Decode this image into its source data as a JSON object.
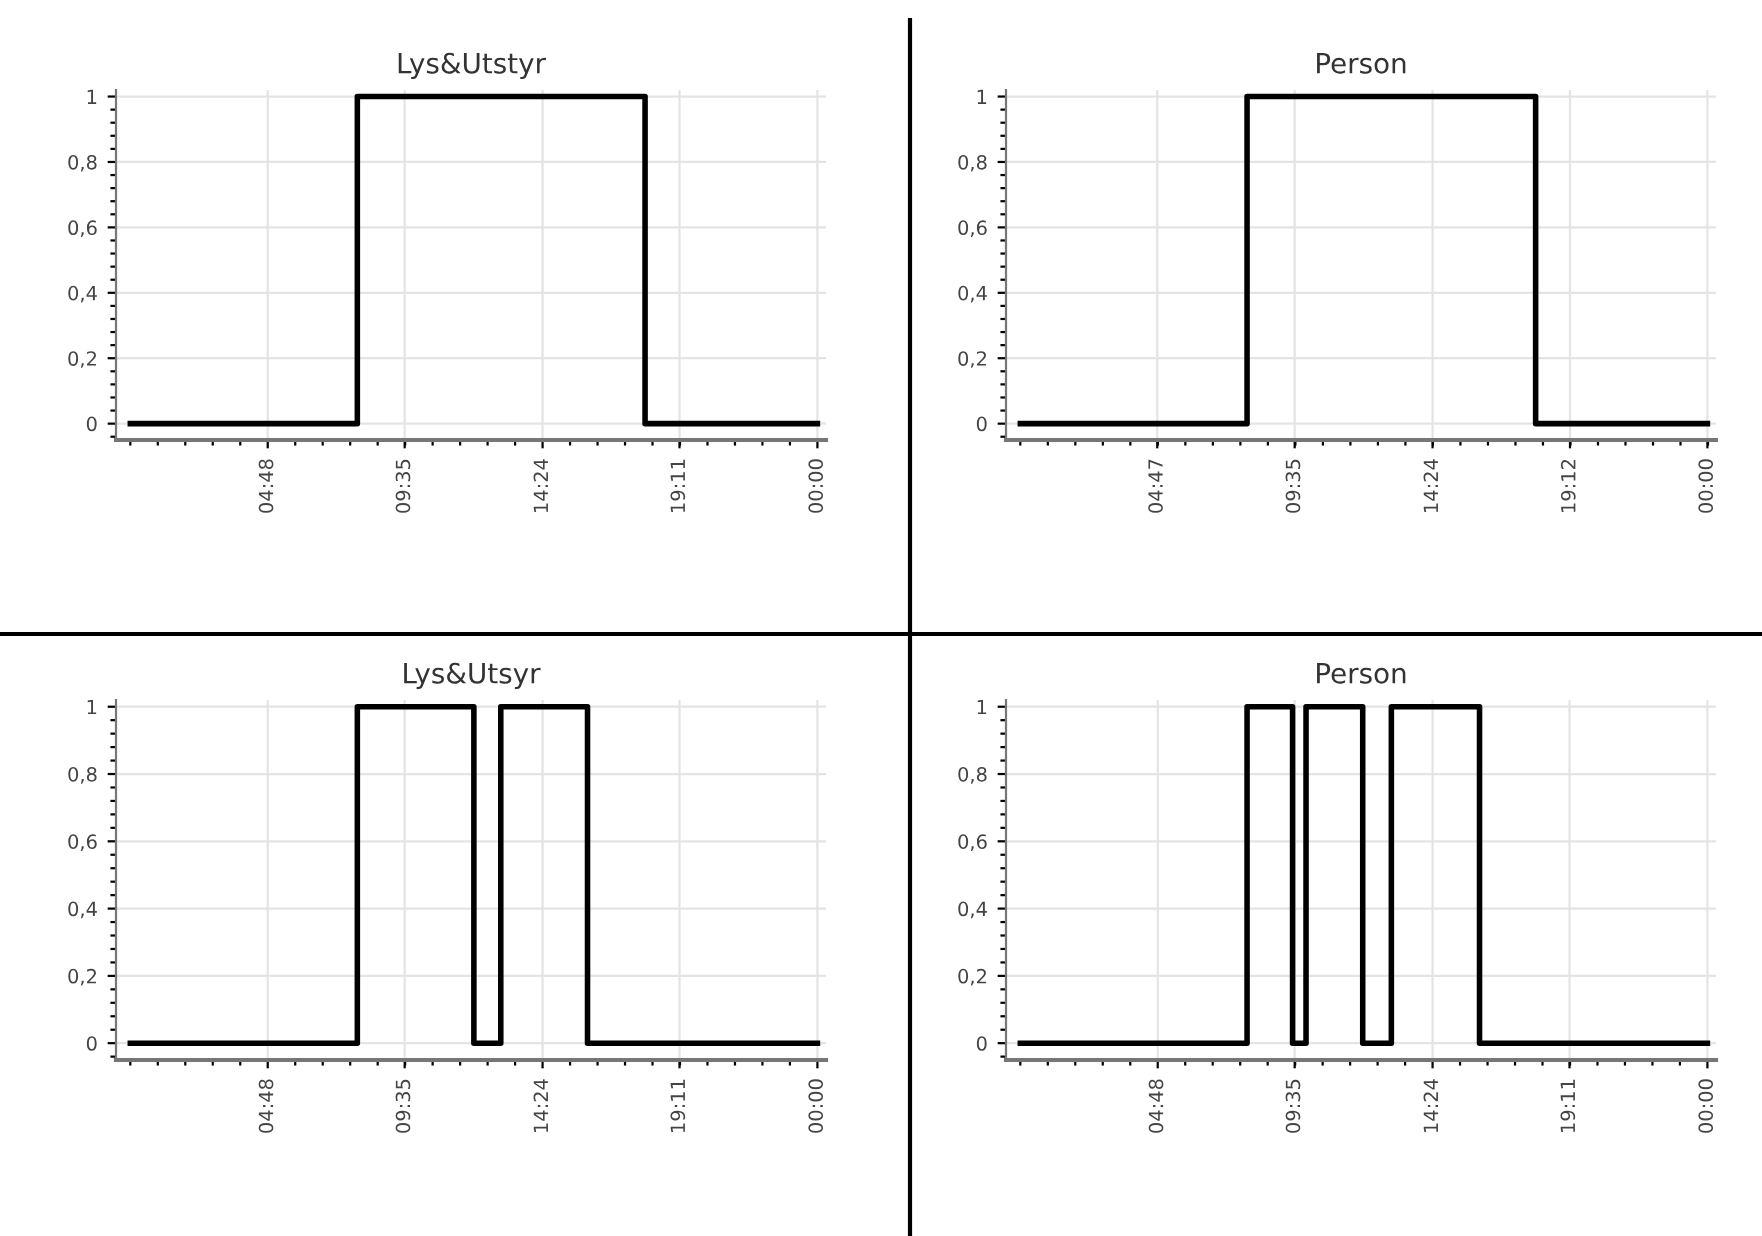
{
  "chart_data": [
    {
      "type": "step",
      "title": "Lys&Utstyr",
      "x": [
        0,
        7.93,
        17.98,
        24
      ],
      "series": [
        {
          "color": "#000000",
          "values": [
            0,
            1,
            0,
            0
          ]
        }
      ],
      "xlim": [
        -0.5,
        24.3
      ],
      "ylim": [
        -0.05,
        1.02
      ],
      "xticks": [
        {
          "value": 4.8,
          "label": "04:48"
        },
        {
          "value": 9.5833,
          "label": "09:35"
        },
        {
          "value": 14.4,
          "label": "14:24"
        },
        {
          "value": 19.1833,
          "label": "19:11"
        },
        {
          "value": 24,
          "label": "00:00"
        }
      ],
      "yticks": [
        0,
        {
          "value": 0.2,
          "label": "0,2"
        },
        {
          "value": 0.4,
          "label": "0,4"
        },
        {
          "value": 0.6,
          "label": "0,6"
        },
        {
          "value": 0.8,
          "label": "0,8"
        },
        1
      ],
      "grid": true
    },
    {
      "type": "step",
      "title": "Person",
      "x": [
        0,
        7.92,
        18.0,
        24
      ],
      "series": [
        {
          "color": "#000000",
          "values": [
            0,
            1,
            0,
            0
          ]
        }
      ],
      "xlim": [
        -0.5,
        24.3
      ],
      "ylim": [
        -0.05,
        1.02
      ],
      "xticks": [
        {
          "value": 4.7833,
          "label": "04:47"
        },
        {
          "value": 9.5833,
          "label": "09:35"
        },
        {
          "value": 14.4,
          "label": "14:24"
        },
        {
          "value": 19.2,
          "label": "19:12"
        },
        {
          "value": 24,
          "label": "00:00"
        }
      ],
      "yticks": [
        0,
        {
          "value": 0.2,
          "label": "0,2"
        },
        {
          "value": 0.4,
          "label": "0,4"
        },
        {
          "value": 0.6,
          "label": "0,6"
        },
        {
          "value": 0.8,
          "label": "0,8"
        },
        1
      ],
      "grid": true
    },
    {
      "type": "step",
      "title": "Lys&Utsyr",
      "x": [
        0,
        7.93,
        12.0,
        12.94,
        15.97,
        24
      ],
      "series": [
        {
          "color": "#000000",
          "values": [
            0,
            1,
            0,
            1,
            0,
            0
          ]
        }
      ],
      "xlim": [
        -0.5,
        24.3
      ],
      "ylim": [
        -0.05,
        1.02
      ],
      "xticks": [
        {
          "value": 4.8,
          "label": "04:48"
        },
        {
          "value": 9.5833,
          "label": "09:35"
        },
        {
          "value": 14.4,
          "label": "14:24"
        },
        {
          "value": 19.1833,
          "label": "19:11"
        },
        {
          "value": 24,
          "label": "00:00"
        }
      ],
      "yticks": [
        0,
        {
          "value": 0.2,
          "label": "0,2"
        },
        {
          "value": 0.4,
          "label": "0,4"
        },
        {
          "value": 0.6,
          "label": "0,6"
        },
        {
          "value": 0.8,
          "label": "0,8"
        },
        1
      ],
      "grid": true
    },
    {
      "type": "step",
      "title": "Person",
      "x": [
        0,
        7.92,
        9.51,
        9.98,
        11.96,
        12.96,
        16.04,
        24
      ],
      "series": [
        {
          "color": "#000000",
          "values": [
            0,
            1,
            0,
            1,
            0,
            1,
            0,
            0
          ]
        }
      ],
      "xlim": [
        -0.5,
        24.3
      ],
      "ylim": [
        -0.05,
        1.02
      ],
      "xticks": [
        {
          "value": 4.8,
          "label": "04:48"
        },
        {
          "value": 9.5833,
          "label": "09:35"
        },
        {
          "value": 14.4,
          "label": "14:24"
        },
        {
          "value": 19.1833,
          "label": "19:11"
        },
        {
          "value": 24,
          "label": "00:00"
        }
      ],
      "yticks": [
        0,
        {
          "value": 0.2,
          "label": "0,2"
        },
        {
          "value": 0.4,
          "label": "0,4"
        },
        {
          "value": 0.6,
          "label": "0,6"
        },
        {
          "value": 0.8,
          "label": "0,8"
        },
        1
      ],
      "grid": true
    }
  ]
}
